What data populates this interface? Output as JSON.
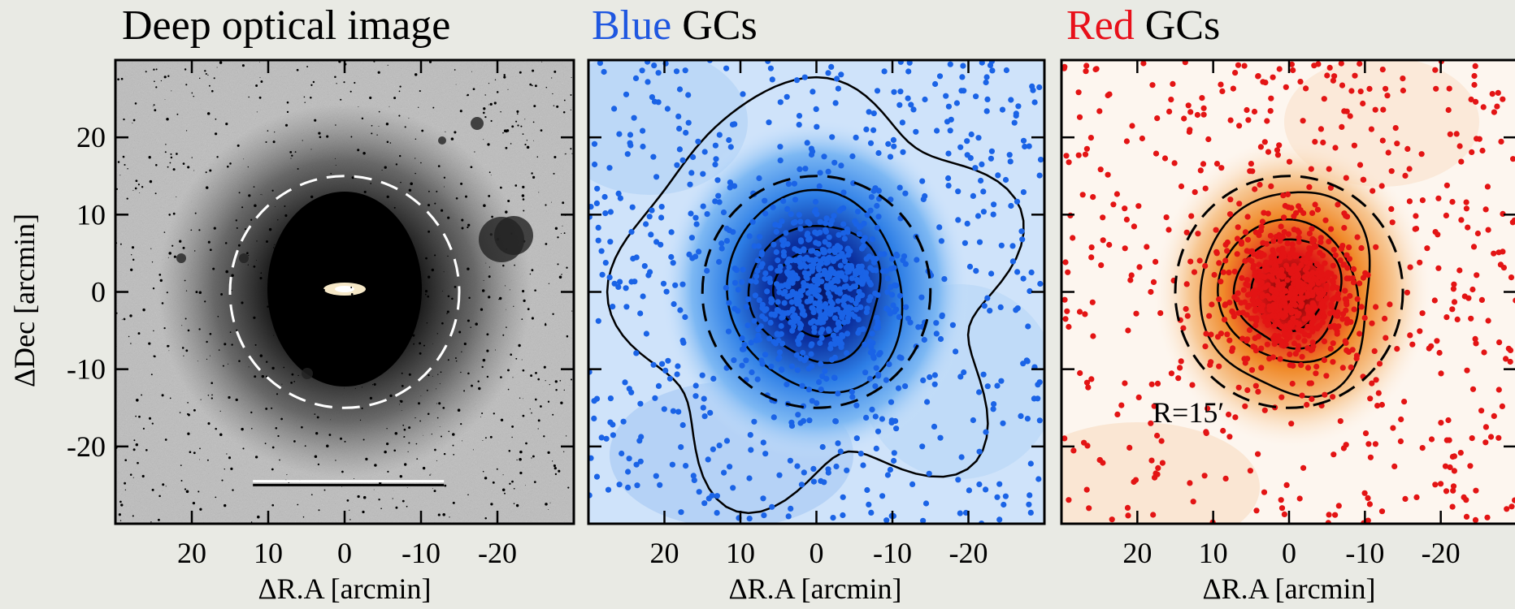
{
  "panels": [
    {
      "title": "Deep optical image",
      "title_color_word": "",
      "title_rest": "Deep optical image",
      "style": "grayscale",
      "circle_color": "#ffffff"
    },
    {
      "title": "Blue GCs",
      "title_color_word": "Blue",
      "title_rest": " GCs",
      "accent": "#1f57e0",
      "style": "blue"
    },
    {
      "title": "Red GCs",
      "title_color_word": "Red",
      "title_rest": " GCs",
      "accent": "#e8101a",
      "style": "red",
      "annotation": "R=15′"
    }
  ],
  "axes": {
    "xlabel": "ΔR.A [arcmin]",
    "ylabel": "ΔDec [arcmin]",
    "xticks": [
      20,
      10,
      0,
      -10,
      -20
    ],
    "xtick_labels": [
      "20",
      "10",
      "0",
      "-10",
      "-20"
    ],
    "yticks": [
      20,
      10,
      0,
      -10,
      -20
    ],
    "ytick_labels": [
      "20",
      "10",
      "0",
      "-10",
      "-20"
    ],
    "xlim": [
      30,
      -30
    ],
    "ylim": [
      -30,
      30
    ]
  },
  "circle_radius_arcmin": 15,
  "colors": {
    "blue_points": "#1a63e6",
    "red_points": "#e31414",
    "contour": "#000000"
  }
}
